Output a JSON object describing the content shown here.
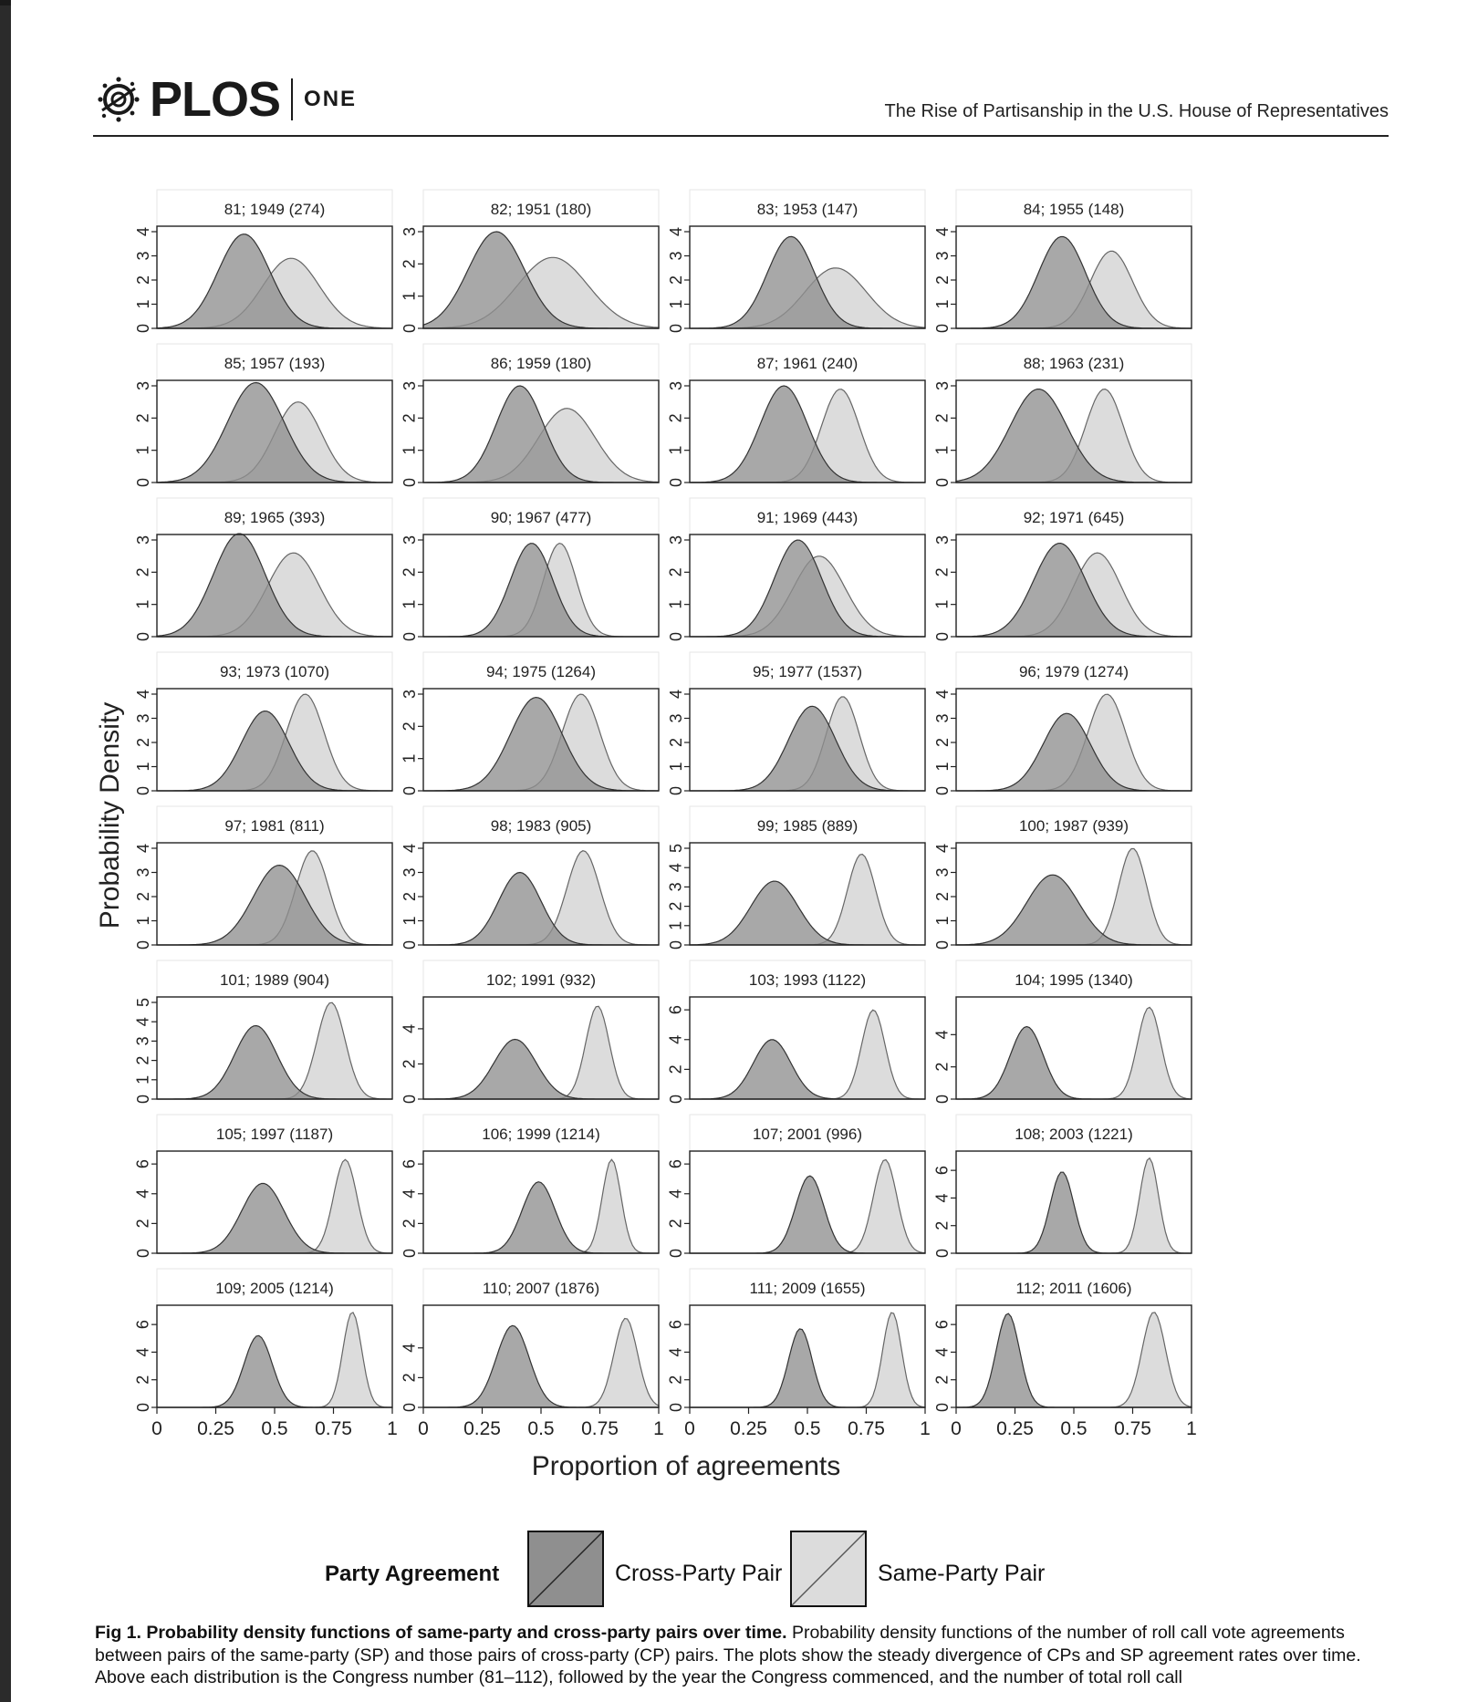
{
  "header": {
    "logo_name": "PLOS",
    "logo_sub": "ONE",
    "running_title": "The Rise of Partisanship in the U.S. House of Representatives"
  },
  "figure": {
    "ylabel": "Probability Density",
    "xlabel": "Proportion of agreements",
    "x_tick_labels": [
      "0",
      "0.25",
      "0.5",
      "0.75",
      "1"
    ],
    "colors": {
      "cross_party": "#8f8f8f",
      "same_party": "#dcdcdc",
      "overlap": "#a6a6a6",
      "panel_border": "#222222"
    }
  },
  "chart_data": {
    "type": "area",
    "xlabel": "Proportion of agreements",
    "ylabel": "Probability Density",
    "xlim": [
      0,
      1
    ],
    "series_names": [
      "Cross-Party Pair",
      "Same-Party Pair"
    ],
    "panels": [
      {
        "title": "81; 1949 (274)",
        "yticks": [
          "0",
          "1",
          "2",
          "3",
          "4"
        ],
        "ymax": 4,
        "cp": {
          "mu": 0.37,
          "sd": 0.11,
          "peak": 3.9
        },
        "sp": {
          "mu": 0.57,
          "sd": 0.12,
          "peak": 2.9
        }
      },
      {
        "title": "82; 1951 (180)",
        "yticks": [
          "0",
          "1",
          "2",
          "3"
        ],
        "ymax": 3,
        "cp": {
          "mu": 0.31,
          "sd": 0.12,
          "peak": 3.0
        },
        "sp": {
          "mu": 0.55,
          "sd": 0.15,
          "peak": 2.2
        }
      },
      {
        "title": "83; 1953 (147)",
        "yticks": [
          "0",
          "1",
          "2",
          "3",
          "4"
        ],
        "ymax": 4,
        "cp": {
          "mu": 0.43,
          "sd": 0.1,
          "peak": 3.8
        },
        "sp": {
          "mu": 0.62,
          "sd": 0.13,
          "peak": 2.5
        }
      },
      {
        "title": "84; 1955 (148)",
        "yticks": [
          "0",
          "1",
          "2",
          "3",
          "4"
        ],
        "ymax": 4,
        "cp": {
          "mu": 0.45,
          "sd": 0.1,
          "peak": 3.8
        },
        "sp": {
          "mu": 0.66,
          "sd": 0.09,
          "peak": 3.2
        }
      },
      {
        "title": "85; 1957 (193)",
        "yticks": [
          "0",
          "1",
          "2",
          "3"
        ],
        "ymax": 3,
        "cp": {
          "mu": 0.42,
          "sd": 0.12,
          "peak": 3.1
        },
        "sp": {
          "mu": 0.6,
          "sd": 0.1,
          "peak": 2.5
        }
      },
      {
        "title": "86; 1959 (180)",
        "yticks": [
          "0",
          "1",
          "2",
          "3"
        ],
        "ymax": 3,
        "cp": {
          "mu": 0.41,
          "sd": 0.1,
          "peak": 3.0
        },
        "sp": {
          "mu": 0.61,
          "sd": 0.12,
          "peak": 2.3
        }
      },
      {
        "title": "87; 1961 (240)",
        "yticks": [
          "0",
          "1",
          "2",
          "3"
        ],
        "ymax": 3,
        "cp": {
          "mu": 0.4,
          "sd": 0.1,
          "peak": 3.0
        },
        "sp": {
          "mu": 0.64,
          "sd": 0.08,
          "peak": 2.9
        }
      },
      {
        "title": "88; 1963 (231)",
        "yticks": [
          "0",
          "1",
          "2",
          "3"
        ],
        "ymax": 3,
        "cp": {
          "mu": 0.35,
          "sd": 0.12,
          "peak": 2.9
        },
        "sp": {
          "mu": 0.63,
          "sd": 0.08,
          "peak": 2.9
        }
      },
      {
        "title": "89; 1965 (393)",
        "yticks": [
          "0",
          "1",
          "2",
          "3"
        ],
        "ymax": 3,
        "cp": {
          "mu": 0.35,
          "sd": 0.11,
          "peak": 3.2
        },
        "sp": {
          "mu": 0.58,
          "sd": 0.11,
          "peak": 2.6
        }
      },
      {
        "title": "90; 1967 (477)",
        "yticks": [
          "0",
          "1",
          "2",
          "3"
        ],
        "ymax": 3,
        "cp": {
          "mu": 0.46,
          "sd": 0.09,
          "peak": 2.9
        },
        "sp": {
          "mu": 0.58,
          "sd": 0.07,
          "peak": 2.9
        }
      },
      {
        "title": "91; 1969 (443)",
        "yticks": [
          "0",
          "1",
          "2",
          "3"
        ],
        "ymax": 3,
        "cp": {
          "mu": 0.46,
          "sd": 0.1,
          "peak": 3.0
        },
        "sp": {
          "mu": 0.55,
          "sd": 0.11,
          "peak": 2.5
        }
      },
      {
        "title": "92; 1971 (645)",
        "yticks": [
          "0",
          "1",
          "2",
          "3"
        ],
        "ymax": 3,
        "cp": {
          "mu": 0.44,
          "sd": 0.11,
          "peak": 2.9
        },
        "sp": {
          "mu": 0.6,
          "sd": 0.1,
          "peak": 2.6
        }
      },
      {
        "title": "93; 1973 (1070)",
        "yticks": [
          "0",
          "1",
          "2",
          "3",
          "4"
        ],
        "ymax": 4,
        "cp": {
          "mu": 0.46,
          "sd": 0.1,
          "peak": 3.3
        },
        "sp": {
          "mu": 0.63,
          "sd": 0.08,
          "peak": 4.0
        }
      },
      {
        "title": "94; 1975 (1264)",
        "yticks": [
          "0",
          "1",
          "2",
          "3"
        ],
        "ymax": 3,
        "cp": {
          "mu": 0.48,
          "sd": 0.11,
          "peak": 2.9
        },
        "sp": {
          "mu": 0.67,
          "sd": 0.08,
          "peak": 3.0
        }
      },
      {
        "title": "95; 1977 (1537)",
        "yticks": [
          "0",
          "1",
          "2",
          "3",
          "4"
        ],
        "ymax": 4,
        "cp": {
          "mu": 0.52,
          "sd": 0.1,
          "peak": 3.5
        },
        "sp": {
          "mu": 0.65,
          "sd": 0.07,
          "peak": 3.9
        }
      },
      {
        "title": "96; 1979 (1274)",
        "yticks": [
          "0",
          "1",
          "2",
          "3",
          "4"
        ],
        "ymax": 4,
        "cp": {
          "mu": 0.47,
          "sd": 0.1,
          "peak": 3.2
        },
        "sp": {
          "mu": 0.64,
          "sd": 0.08,
          "peak": 4.0
        }
      },
      {
        "title": "97; 1981 (811)",
        "yticks": [
          "0",
          "1",
          "2",
          "3",
          "4"
        ],
        "ymax": 4,
        "cp": {
          "mu": 0.52,
          "sd": 0.11,
          "peak": 3.3
        },
        "sp": {
          "mu": 0.66,
          "sd": 0.07,
          "peak": 3.9
        }
      },
      {
        "title": "98; 1983 (905)",
        "yticks": [
          "0",
          "1",
          "2",
          "3",
          "4"
        ],
        "ymax": 4,
        "cp": {
          "mu": 0.41,
          "sd": 0.09,
          "peak": 3.0
        },
        "sp": {
          "mu": 0.68,
          "sd": 0.07,
          "peak": 3.9
        }
      },
      {
        "title": "99; 1985 (889)",
        "yticks": [
          "0",
          "1",
          "2",
          "3",
          "4",
          "5"
        ],
        "ymax": 5,
        "cp": {
          "mu": 0.36,
          "sd": 0.1,
          "peak": 3.3
        },
        "sp": {
          "mu": 0.73,
          "sd": 0.06,
          "peak": 4.7
        }
      },
      {
        "title": "100; 1987 (939)",
        "yticks": [
          "0",
          "1",
          "2",
          "3",
          "4"
        ],
        "ymax": 4,
        "cp": {
          "mu": 0.41,
          "sd": 0.11,
          "peak": 2.9
        },
        "sp": {
          "mu": 0.75,
          "sd": 0.06,
          "peak": 4.0
        }
      },
      {
        "title": "101; 1989 (904)",
        "yticks": [
          "0",
          "1",
          "2",
          "3",
          "4",
          "5"
        ],
        "ymax": 5,
        "cp": {
          "mu": 0.42,
          "sd": 0.09,
          "peak": 3.8
        },
        "sp": {
          "mu": 0.74,
          "sd": 0.06,
          "peak": 5.0
        }
      },
      {
        "title": "102; 1991 (932)",
        "yticks": [
          "0",
          "2",
          "4"
        ],
        "ymax": 5.5,
        "cp": {
          "mu": 0.39,
          "sd": 0.09,
          "peak": 3.4
        },
        "sp": {
          "mu": 0.74,
          "sd": 0.05,
          "peak": 5.3
        }
      },
      {
        "title": "103; 1993 (1122)",
        "yticks": [
          "0",
          "2",
          "4",
          "6"
        ],
        "ymax": 6.5,
        "cp": {
          "mu": 0.35,
          "sd": 0.08,
          "peak": 4.0
        },
        "sp": {
          "mu": 0.78,
          "sd": 0.05,
          "peak": 6.0
        }
      },
      {
        "title": "104; 1995 (1340)",
        "yticks": [
          "0",
          "2",
          "4"
        ],
        "ymax": 6,
        "cp": {
          "mu": 0.3,
          "sd": 0.07,
          "peak": 4.5
        },
        "sp": {
          "mu": 0.82,
          "sd": 0.05,
          "peak": 5.7
        }
      },
      {
        "title": "105; 1997 (1187)",
        "yticks": [
          "0",
          "2",
          "4",
          "6"
        ],
        "ymax": 6.5,
        "cp": {
          "mu": 0.45,
          "sd": 0.09,
          "peak": 4.7
        },
        "sp": {
          "mu": 0.8,
          "sd": 0.05,
          "peak": 6.3
        }
      },
      {
        "title": "106; 1999 (1214)",
        "yticks": [
          "0",
          "2",
          "4",
          "6"
        ],
        "ymax": 6.5,
        "cp": {
          "mu": 0.49,
          "sd": 0.07,
          "peak": 4.8
        },
        "sp": {
          "mu": 0.8,
          "sd": 0.04,
          "peak": 6.3
        }
      },
      {
        "title": "107; 2001 (996)",
        "yticks": [
          "0",
          "2",
          "4",
          "6"
        ],
        "ymax": 6.5,
        "cp": {
          "mu": 0.51,
          "sd": 0.06,
          "peak": 5.2
        },
        "sp": {
          "mu": 0.83,
          "sd": 0.05,
          "peak": 6.3
        }
      },
      {
        "title": "108; 2003 (1221)",
        "yticks": [
          "0",
          "2",
          "4",
          "6"
        ],
        "ymax": 7,
        "cp": {
          "mu": 0.45,
          "sd": 0.05,
          "peak": 5.9
        },
        "sp": {
          "mu": 0.82,
          "sd": 0.04,
          "peak": 6.9
        }
      },
      {
        "title": "109; 2005 (1214)",
        "yticks": [
          "0",
          "2",
          "4",
          "6"
        ],
        "ymax": 7,
        "cp": {
          "mu": 0.43,
          "sd": 0.06,
          "peak": 5.2
        },
        "sp": {
          "mu": 0.83,
          "sd": 0.04,
          "peak": 6.9
        }
      },
      {
        "title": "110; 2007 (1876)",
        "yticks": [
          "0",
          "2",
          "4"
        ],
        "ymax": 6.5,
        "cp": {
          "mu": 0.38,
          "sd": 0.07,
          "peak": 5.5
        },
        "sp": {
          "mu": 0.86,
          "sd": 0.05,
          "peak": 6.0
        }
      },
      {
        "title": "111; 2009 (1655)",
        "yticks": [
          "0",
          "2",
          "4",
          "6"
        ],
        "ymax": 7,
        "cp": {
          "mu": 0.47,
          "sd": 0.05,
          "peak": 5.7
        },
        "sp": {
          "mu": 0.86,
          "sd": 0.04,
          "peak": 6.9
        }
      },
      {
        "title": "112; 2011 (1606)",
        "yticks": [
          "0",
          "2",
          "4",
          "6"
        ],
        "ymax": 7,
        "cp": {
          "mu": 0.22,
          "sd": 0.05,
          "peak": 6.8
        },
        "sp": {
          "mu": 0.84,
          "sd": 0.05,
          "peak": 6.9
        }
      }
    ]
  },
  "legend": {
    "title": "Party Agreement",
    "cross_party_label": "Cross-Party Pair",
    "same_party_label": "Same-Party Pair"
  },
  "caption": {
    "lead": "Fig 1. Probability density functions of same-party and cross-party pairs over time.",
    "body": " Probability density functions of the number of roll call vote agreements between pairs of the same-party (SP) and those pairs of cross-party (CP) pairs. The plots show the steady divergence of CPs and SP agreement rates over time. Above each distribution is the Congress number (81–112), followed by the year the Congress commenced, and the number of total roll call"
  }
}
